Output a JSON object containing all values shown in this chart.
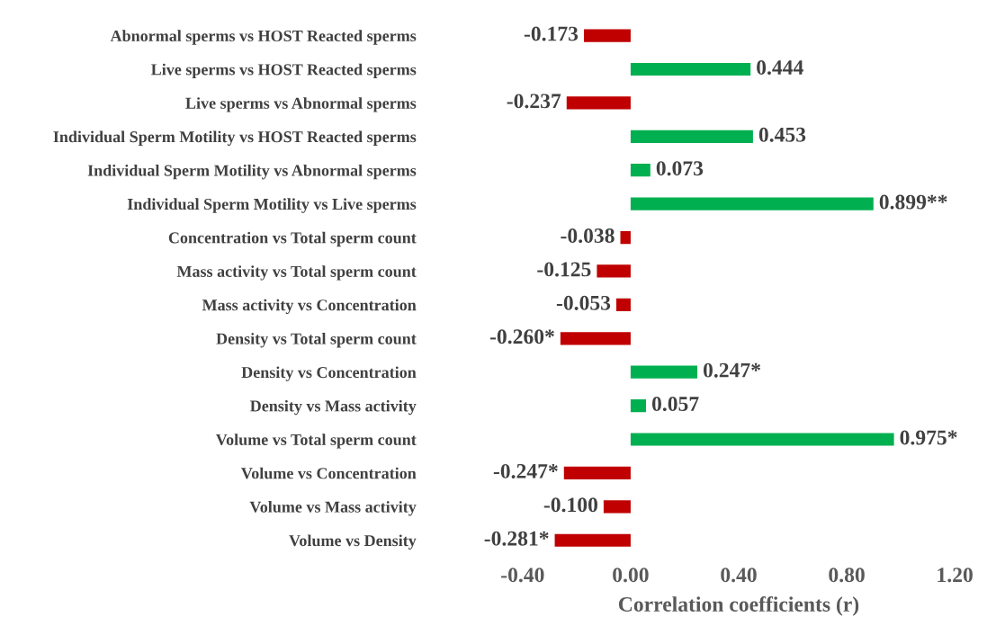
{
  "chart_data": {
    "type": "bar",
    "orientation": "horizontal",
    "xlabel": "Correlation coefficients (r)",
    "categories": [
      "Abnormal sperms vs HOST Reacted sperms",
      "Live sperms vs HOST Reacted sperms",
      "Live sperms vs Abnormal sperms",
      "Individual Sperm Motility vs HOST Reacted sperms",
      "Individual Sperm Motility vs Abnormal sperms",
      "Individual Sperm Motility vs Live sperms",
      "Concentration vs Total sperm count",
      "Mass activity vs Total sperm count",
      "Mass activity vs Concentration",
      "Density vs Total sperm count",
      "Density vs Concentration",
      "Density vs Mass activity",
      "Volume vs Total sperm count",
      "Volume vs Concentration",
      "Volume vs Mass activity",
      "Volume vs Density"
    ],
    "values": [
      -0.173,
      0.444,
      -0.237,
      0.453,
      0.073,
      0.899,
      -0.038,
      -0.125,
      -0.053,
      -0.26,
      0.247,
      0.057,
      0.975,
      -0.247,
      -0.1,
      -0.281
    ],
    "value_labels": [
      "-0.173",
      "0.444",
      "-0.237",
      "0.453",
      "0.073",
      "0.899**",
      "-0.038",
      "-0.125",
      "-0.053",
      "-0.260*",
      "0.247*",
      "0.057",
      "0.975*",
      "-0.247*",
      "-0.100",
      "-0.281*"
    ],
    "colors": [
      "#c00000",
      "#00b050",
      "#c00000",
      "#00b050",
      "#00b050",
      "#00b050",
      "#c00000",
      "#c00000",
      "#c00000",
      "#c00000",
      "#00b050",
      "#00b050",
      "#00b050",
      "#c00000",
      "#c00000",
      "#c00000"
    ],
    "xlim": [
      -0.4,
      1.2
    ],
    "xticks": [
      {
        "value": -0.4,
        "label": "-0.40"
      },
      {
        "value": 0,
        "label": "0.00"
      },
      {
        "value": 0.4,
        "label": "0.40"
      },
      {
        "value": 0.8,
        "label": "0.80"
      },
      {
        "value": 1.2,
        "label": "1.20"
      }
    ],
    "grid": false,
    "legend": false
  }
}
